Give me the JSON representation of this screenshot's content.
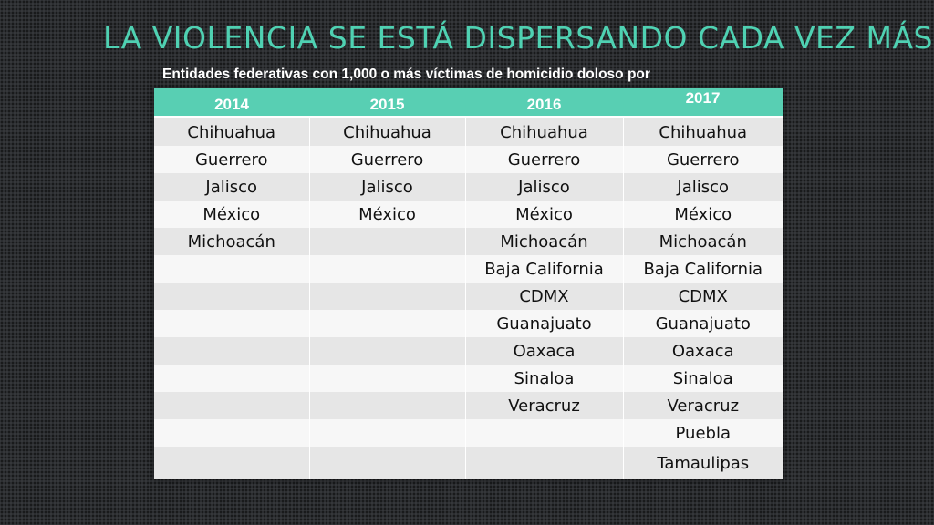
{
  "slide": {
    "title": "LA VIOLENCIA SE ESTÁ DISPERSANDO CADA VEZ MÁS…",
    "subtitle": "Entidades federativas con 1,000 o más víctimas de homicidio doloso por"
  },
  "table": {
    "headers": [
      "2014",
      "2015",
      "2016",
      "2017"
    ],
    "rows": [
      [
        "Chihuahua",
        "Chihuahua",
        "Chihuahua",
        "Chihuahua"
      ],
      [
        "Guerrero",
        "Guerrero",
        "Guerrero",
        "Guerrero"
      ],
      [
        "Jalisco",
        "Jalisco",
        "Jalisco",
        "Jalisco"
      ],
      [
        "México",
        "México",
        "México",
        "México"
      ],
      [
        "Michoacán",
        "",
        "Michoacán",
        "Michoacán"
      ],
      [
        "",
        "",
        "Baja California",
        "Baja California"
      ],
      [
        "",
        "",
        "CDMX",
        "CDMX"
      ],
      [
        "",
        "",
        "Guanajuato",
        "Guanajuato"
      ],
      [
        "",
        "",
        "Oaxaca",
        "Oaxaca"
      ],
      [
        "",
        "",
        "Sinaloa",
        "Sinaloa"
      ],
      [
        "",
        "",
        "Veracruz",
        "Veracruz"
      ],
      [
        "",
        "",
        "",
        "Puebla"
      ],
      [
        "",
        "",
        "",
        "Tamaulipas"
      ]
    ]
  }
}
